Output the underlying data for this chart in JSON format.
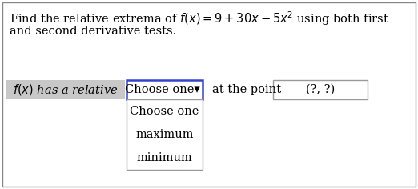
{
  "title_line1": "Find the relative extrema of $f(x) = 9 + 30x - 5x^2$ using both first",
  "title_line2": "and second derivative tests.",
  "label_text": "$f(x)$ has a relative",
  "dropdown_text": "Choose one▾",
  "at_point_text": "at the point",
  "point_text": "(?, ?)",
  "dropdown_items": [
    "Choose one",
    "maximum",
    "minimum"
  ],
  "bg_color": "#ffffff",
  "outer_border_color": "#888888",
  "label_bg": "#c8c8c8",
  "dropdown_border": "#3344cc",
  "listbox_border": "#999999",
  "point_box_border": "#999999",
  "title_fontsize": 10.5,
  "ui_fontsize": 10.5,
  "list_fontsize": 10.5,
  "fig_w": 5.22,
  "fig_h": 2.36,
  "dpi": 100
}
